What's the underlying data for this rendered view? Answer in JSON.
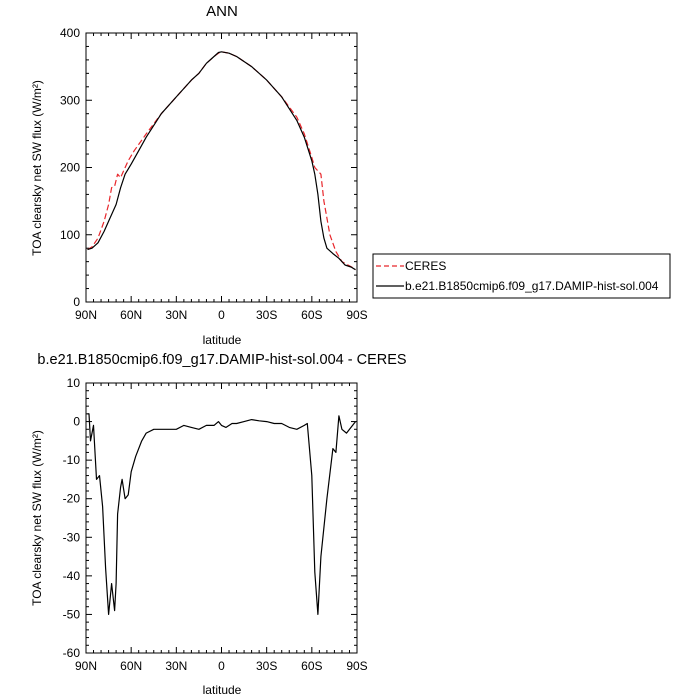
{
  "chart_data": [
    {
      "type": "line",
      "title": "ANN",
      "xlabel": "latitude",
      "ylabel": "TOA clearsky net SW flux (W/m²)",
      "ylim": [
        0,
        400
      ],
      "y_ticks": [
        "0",
        "100",
        "200",
        "300",
        "400"
      ],
      "xlim": [
        90,
        -90
      ],
      "x_ticks": [
        {
          "value": 90,
          "label": "90N"
        },
        {
          "value": 60,
          "label": "60N"
        },
        {
          "value": 30,
          "label": "30N"
        },
        {
          "value": 0,
          "label": "0"
        },
        {
          "value": -30,
          "label": "30S"
        },
        {
          "value": -60,
          "label": "60S"
        },
        {
          "value": -90,
          "label": "90S"
        }
      ],
      "legend_position": "right",
      "series": [
        {
          "name": "CERES",
          "color": "#e8262b",
          "style": "dashed",
          "points": [
            [
              89,
              78
            ],
            [
              86,
              82
            ],
            [
              82,
              95
            ],
            [
              78,
              120
            ],
            [
              75,
              145
            ],
            [
              73,
              170
            ],
            [
              71,
              172
            ],
            [
              69,
              190
            ],
            [
              67,
              185
            ],
            [
              65,
              195
            ],
            [
              62,
              210
            ],
            [
              58,
              225
            ],
            [
              50,
              250
            ],
            [
              40,
              280
            ],
            [
              30,
              305
            ],
            [
              20,
              330
            ],
            [
              15,
              340
            ],
            [
              10,
              355
            ],
            [
              5,
              365
            ],
            [
              2,
              370
            ],
            [
              0,
              372
            ],
            [
              -5,
              370
            ],
            [
              -10,
              365
            ],
            [
              -20,
              350
            ],
            [
              -30,
              330
            ],
            [
              -40,
              305
            ],
            [
              -50,
              275
            ],
            [
              -55,
              250
            ],
            [
              -60,
              215
            ],
            [
              -62,
              200
            ],
            [
              -66,
              190
            ],
            [
              -68,
              150
            ],
            [
              -72,
              100
            ],
            [
              -76,
              75
            ],
            [
              -80,
              60
            ],
            [
              -84,
              55
            ],
            [
              -88,
              50
            ],
            [
              -89,
              48
            ]
          ]
        },
        {
          "name": "b.e21.B1850cmip6.f09_g17.DAMIP-hist-sol.004",
          "color": "#000000",
          "style": "solid",
          "points": [
            [
              89,
              78
            ],
            [
              86,
              80
            ],
            [
              82,
              88
            ],
            [
              78,
              105
            ],
            [
              74,
              125
            ],
            [
              70,
              145
            ],
            [
              67,
              170
            ],
            [
              64,
              190
            ],
            [
              60,
              205
            ],
            [
              55,
              225
            ],
            [
              50,
              245
            ],
            [
              40,
              280
            ],
            [
              30,
              305
            ],
            [
              20,
              330
            ],
            [
              15,
              340
            ],
            [
              10,
              355
            ],
            [
              5,
              365
            ],
            [
              2,
              371
            ],
            [
              0,
              372
            ],
            [
              -5,
              370
            ],
            [
              -10,
              365
            ],
            [
              -20,
              350
            ],
            [
              -30,
              330
            ],
            [
              -40,
              305
            ],
            [
              -50,
              270
            ],
            [
              -55,
              245
            ],
            [
              -60,
              210
            ],
            [
              -62,
              190
            ],
            [
              -64,
              160
            ],
            [
              -66,
              120
            ],
            [
              -68,
              95
            ],
            [
              -70,
              80
            ],
            [
              -74,
              72
            ],
            [
              -78,
              65
            ],
            [
              -82,
              55
            ],
            [
              -86,
              52
            ],
            [
              -89,
              48
            ]
          ]
        }
      ]
    },
    {
      "type": "line",
      "title": "b.e21.B1850cmip6.f09_g17.DAMIP-hist-sol.004 - CERES",
      "xlabel": "latitude",
      "ylabel": "TOA clearsky net SW flux (W/m²)",
      "ylim": [
        -60,
        10
      ],
      "y_ticks": [
        "-60",
        "-50",
        "-40",
        "-30",
        "-20",
        "-10",
        "0",
        "10"
      ],
      "xlim": [
        90,
        -90
      ],
      "x_ticks": [
        {
          "value": 90,
          "label": "90N"
        },
        {
          "value": 60,
          "label": "60N"
        },
        {
          "value": 30,
          "label": "30N"
        },
        {
          "value": 0,
          "label": "0"
        },
        {
          "value": -30,
          "label": "30S"
        },
        {
          "value": -60,
          "label": "60S"
        },
        {
          "value": -90,
          "label": "90S"
        }
      ],
      "series": [
        {
          "color": "#000000",
          "style": "solid",
          "points": [
            [
              89,
              2
            ],
            [
              88,
              2
            ],
            [
              87,
              -5
            ],
            [
              85,
              -1
            ],
            [
              83,
              -15
            ],
            [
              81,
              -14
            ],
            [
              79,
              -22
            ],
            [
              77,
              -38
            ],
            [
              75,
              -50
            ],
            [
              73,
              -42
            ],
            [
              71,
              -49
            ],
            [
              70,
              -42
            ],
            [
              69,
              -24
            ],
            [
              67,
              -17
            ],
            [
              66,
              -15
            ],
            [
              64,
              -20
            ],
            [
              62,
              -19
            ],
            [
              60,
              -13
            ],
            [
              57,
              -9
            ],
            [
              53,
              -5
            ],
            [
              50,
              -3
            ],
            [
              45,
              -2
            ],
            [
              40,
              -2
            ],
            [
              35,
              -2
            ],
            [
              30,
              -2
            ],
            [
              25,
              -1
            ],
            [
              20,
              -1.5
            ],
            [
              15,
              -2
            ],
            [
              10,
              -1
            ],
            [
              5,
              -1
            ],
            [
              2,
              0
            ],
            [
              0,
              -1
            ],
            [
              -3,
              -1.5
            ],
            [
              -7,
              -0.5
            ],
            [
              -10,
              -0.5
            ],
            [
              -15,
              0
            ],
            [
              -20,
              0.5
            ],
            [
              -25,
              0.2
            ],
            [
              -30,
              0
            ],
            [
              -35,
              -0.5
            ],
            [
              -40,
              -0.5
            ],
            [
              -45,
              -1.5
            ],
            [
              -50,
              -2
            ],
            [
              -55,
              -1
            ],
            [
              -57,
              -0.5
            ],
            [
              -60,
              -14
            ],
            [
              -62,
              -39
            ],
            [
              -64,
              -50
            ],
            [
              -66,
              -35
            ],
            [
              -70,
              -20
            ],
            [
              -74,
              -7
            ],
            [
              -76,
              -8
            ],
            [
              -78,
              1.5
            ],
            [
              -80,
              -2
            ],
            [
              -83,
              -3
            ],
            [
              -86,
              -1.5
            ],
            [
              -89,
              0
            ]
          ]
        }
      ]
    }
  ]
}
